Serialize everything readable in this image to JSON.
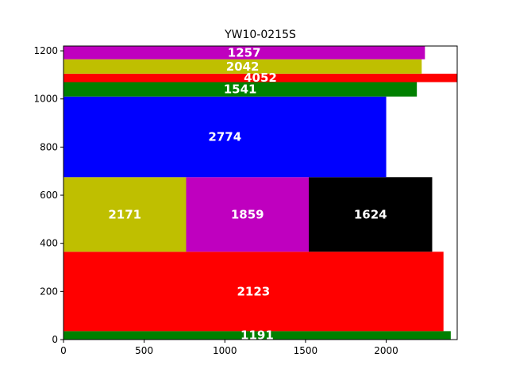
{
  "chart_data": {
    "type": "bar",
    "title": "YW10-0215S",
    "xlim": [
      0,
      2440
    ],
    "ylim": [
      0,
      1220
    ],
    "xticks": [
      0,
      500,
      1000,
      1500,
      2000
    ],
    "yticks": [
      0,
      200,
      400,
      600,
      800,
      1000,
      1200
    ],
    "rects": [
      {
        "label": "1191",
        "x": 0,
        "y": 0,
        "w": 2400,
        "h": 35,
        "color": "#008000"
      },
      {
        "label": "2123",
        "x": 0,
        "y": 35,
        "w": 2355,
        "h": 330,
        "color": "#ff0000"
      },
      {
        "label": "2171",
        "x": 0,
        "y": 365,
        "w": 760,
        "h": 310,
        "color": "#bfbf00"
      },
      {
        "label": "1859",
        "x": 760,
        "y": 365,
        "w": 760,
        "h": 310,
        "color": "#bf00bf"
      },
      {
        "label": "1624",
        "x": 1520,
        "y": 365,
        "w": 765,
        "h": 310,
        "color": "#000000"
      },
      {
        "label": "2774",
        "x": 0,
        "y": 675,
        "w": 2000,
        "h": 335,
        "color": "#0000ff"
      },
      {
        "label": "1541",
        "x": 0,
        "y": 1010,
        "w": 2190,
        "h": 60,
        "color": "#008000"
      },
      {
        "label": "4052",
        "x": 0,
        "y": 1070,
        "w": 2440,
        "h": 35,
        "color": "#ff0000"
      },
      {
        "label": "2042",
        "x": 0,
        "y": 1105,
        "w": 2220,
        "h": 60,
        "color": "#bfbf00"
      },
      {
        "label": "1257",
        "x": 0,
        "y": 1165,
        "w": 2240,
        "h": 55,
        "color": "#bf00bf"
      }
    ]
  }
}
